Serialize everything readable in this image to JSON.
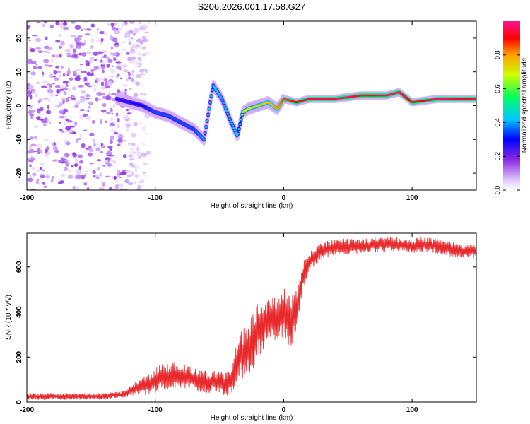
{
  "figure": {
    "title": "S206.2026.001.17.58.G27"
  },
  "chart_data": [
    {
      "type": "heatmap",
      "name": "spectrogram",
      "title": "S206.2026.001.17.58.G27",
      "xlabel": "Height of straight line (km)",
      "ylabel": "Frequency (Hz)",
      "xlim": [
        -200,
        150
      ],
      "ylim": [
        -25,
        25
      ],
      "xticks": [
        -200,
        -100,
        0,
        100
      ],
      "yticks": [
        -20,
        -10,
        0,
        10,
        20
      ],
      "colorbar": {
        "label": "Normalized spectral amplitude",
        "range": [
          0.0,
          1.0
        ],
        "ticks": [
          "0.0",
          "0.2",
          "0.4",
          "0.6",
          "0.8"
        ],
        "tick_values": [
          0.0,
          0.2,
          0.4,
          0.6,
          0.8
        ]
      },
      "ridge": {
        "x": [
          -130,
          -110,
          -100,
          -90,
          -80,
          -70,
          -62,
          -55,
          -48,
          -42,
          -36,
          -32,
          -28,
          -20,
          -12,
          -5,
          0,
          10,
          20,
          40,
          60,
          80,
          90,
          100,
          120,
          150
        ],
        "y": [
          2,
          0,
          -2,
          -3,
          -5,
          -7,
          -10,
          6,
          2,
          -4,
          -9,
          -2,
          -1,
          0,
          1,
          -1,
          2,
          1,
          2,
          2,
          3,
          3,
          4,
          1,
          2,
          2
        ],
        "amplitude": [
          0.25,
          0.3,
          0.35,
          0.35,
          0.35,
          0.35,
          0.4,
          0.45,
          0.4,
          0.45,
          0.45,
          0.65,
          0.7,
          0.75,
          0.75,
          0.8,
          0.85,
          0.9,
          0.95,
          0.95,
          0.95,
          0.95,
          0.95,
          0.9,
          0.95,
          0.95
        ]
      },
      "noise_region": {
        "x_from": -200,
        "x_to": -120,
        "amplitude": 0.15
      }
    },
    {
      "type": "line",
      "name": "snr",
      "title": "",
      "xlabel": "Height of straight line (km)",
      "ylabel": "SNR (10 * v/v)",
      "xlim": [
        -200,
        150
      ],
      "ylim": [
        0,
        750
      ],
      "xticks": [
        -200,
        -100,
        0,
        100
      ],
      "yticks": [
        0,
        200,
        400,
        600
      ],
      "color": "#e8282a",
      "series": [
        {
          "name": "SNR",
          "x": [
            -200,
            -180,
            -160,
            -140,
            -125,
            -115,
            -105,
            -95,
            -85,
            -75,
            -65,
            -55,
            -45,
            -40,
            -35,
            -30,
            -25,
            -20,
            -15,
            -10,
            -5,
            0,
            5,
            10,
            15,
            20,
            25,
            30,
            40,
            50,
            60,
            70,
            80,
            90,
            100,
            110,
            120,
            130,
            140,
            150
          ],
          "y": [
            25,
            25,
            25,
            25,
            35,
            60,
            80,
            110,
            120,
            110,
            90,
            90,
            80,
            100,
            200,
            220,
            260,
            330,
            350,
            360,
            380,
            400,
            350,
            420,
            560,
            620,
            650,
            670,
            690,
            690,
            690,
            700,
            700,
            700,
            690,
            700,
            690,
            680,
            670,
            670
          ],
          "amplitude": [
            15,
            15,
            15,
            15,
            15,
            30,
            50,
            60,
            60,
            55,
            50,
            50,
            60,
            80,
            100,
            120,
            130,
            130,
            120,
            100,
            100,
            110,
            120,
            120,
            80,
            50,
            40,
            40,
            35,
            35,
            35,
            35,
            35,
            35,
            35,
            35,
            35,
            35,
            30,
            30
          ]
        }
      ]
    }
  ]
}
